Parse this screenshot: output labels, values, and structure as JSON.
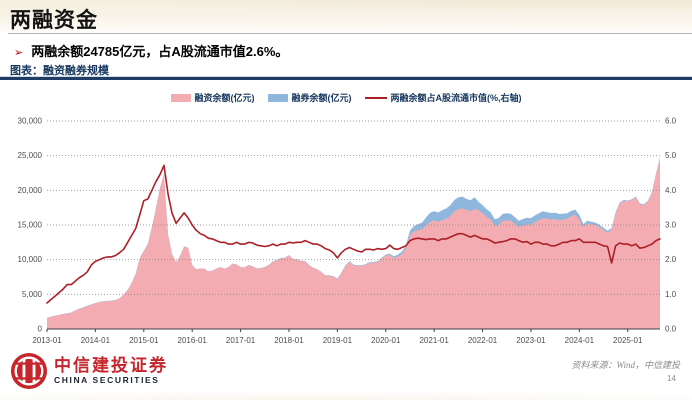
{
  "slide": {
    "title": "两融资金",
    "bullet": {
      "marker": "➢",
      "text": "两融余额24785亿元，占A股流通市值2.6%。"
    },
    "figure_caption": "图表：融资融券规模",
    "source": "资料来源：Wind，中信建投",
    "page_number": "14",
    "logo": {
      "cn": "中信建投证券",
      "en": "CHINA SECURITIES"
    }
  },
  "colors": {
    "financing_fill": "#F3ADB2",
    "securities_fill": "#8FB7DE",
    "ratio_line": "#AC1F26",
    "accent_red": "#C00000",
    "navy": "#17375E",
    "grid": "#7F7F7F",
    "axis_text": "#4D4D4D"
  },
  "chart_data": {
    "type": "area+line",
    "title": "融资融券规模",
    "legend": [
      "融资余额(亿元)",
      "融券余额(亿元)",
      "两融余额占A股流通市值(%,右轴)"
    ],
    "x_interval": "month",
    "x_start": "2013-01",
    "x_end": "2025-09",
    "x_tick_labels": [
      "2013-01",
      "2014-01",
      "2015-01",
      "2016-01",
      "2017-01",
      "2018-01",
      "2019-01",
      "2020-01",
      "2021-01",
      "2022-01",
      "2023-01",
      "2024-01",
      "2025-01"
    ],
    "x_tick_month_indexes": [
      0,
      12,
      24,
      36,
      48,
      60,
      72,
      84,
      96,
      108,
      120,
      132,
      144
    ],
    "y_left": {
      "min": 0,
      "max": 30000,
      "step": 5000,
      "tick_labels": [
        "0",
        "5,000",
        "10,000",
        "15,000",
        "20,000",
        "25,000",
        "30,000"
      ]
    },
    "y_right": {
      "min": 0,
      "max": 6,
      "step": 1,
      "tick_labels": [
        "0.0",
        "1.0",
        "2.0",
        "3.0",
        "4.0",
        "5.0",
        "6.0"
      ]
    },
    "grid": "dotted-horizontal",
    "legend_position": "top-center",
    "series": [
      {
        "name": "融资余额(亿元)",
        "axis": "left",
        "render": "area",
        "values": [
          1600,
          1750,
          1900,
          2000,
          2150,
          2250,
          2350,
          2650,
          2900,
          3100,
          3300,
          3500,
          3700,
          3850,
          3950,
          4000,
          4050,
          4150,
          4400,
          4900,
          5600,
          6600,
          7900,
          10200,
          11200,
          12200,
          14600,
          17300,
          20200,
          22300,
          13600,
          10800,
          9600,
          10500,
          11900,
          11700,
          9200,
          8600,
          8700,
          8700,
          8300,
          8400,
          8700,
          8900,
          8700,
          8900,
          9400,
          9300,
          8900,
          8850,
          9200,
          9000,
          8700,
          8750,
          8900,
          9200,
          9700,
          9900,
          10200,
          10250,
          10600,
          10050,
          10000,
          9800,
          9750,
          9200,
          8800,
          8600,
          8200,
          7700,
          7700,
          7550,
          7200,
          8050,
          9100,
          9650,
          9200,
          9100,
          9100,
          9250,
          9500,
          9550,
          9650,
          10150,
          10600,
          10700,
          10250,
          10450,
          10800,
          11600,
          13600,
          14100,
          14250,
          14400,
          15000,
          15400,
          15700,
          15450,
          15700,
          15900,
          16300,
          17000,
          17300,
          17400,
          17200,
          17000,
          17300,
          17150,
          16700,
          16200,
          15800,
          14900,
          15000,
          15600,
          15650,
          15600,
          15200,
          14700,
          14900,
          15100,
          15050,
          15400,
          15700,
          16000,
          15900,
          15800,
          15850,
          15700,
          15800,
          15900,
          16300,
          16500,
          15800,
          14700,
          15200,
          15100,
          15000,
          14700,
          14300,
          13900,
          14300,
          16700,
          18100,
          18500,
          18400,
          18600,
          19000,
          18000,
          17900,
          18400,
          19600,
          22300,
          24650
        ]
      },
      {
        "name": "融券余额(亿元)",
        "axis": "left",
        "render": "area-stacked",
        "values": [
          25,
          28,
          30,
          30,
          32,
          30,
          32,
          35,
          38,
          40,
          42,
          45,
          50,
          55,
          55,
          50,
          45,
          40,
          45,
          50,
          55,
          60,
          70,
          80,
          80,
          75,
          85,
          90,
          95,
          90,
          40,
          25,
          22,
          25,
          28,
          30,
          28,
          26,
          28,
          30,
          28,
          28,
          30,
          32,
          33,
          35,
          38,
          40,
          38,
          38,
          40,
          42,
          42,
          44,
          46,
          48,
          50,
          52,
          55,
          55,
          56,
          55,
          54,
          52,
          50,
          48,
          46,
          45,
          44,
          44,
          45,
          80,
          80,
          85,
          90,
          95,
          95,
          95,
          100,
          110,
          115,
          120,
          130,
          140,
          150,
          180,
          220,
          280,
          350,
          450,
          600,
          750,
          850,
          950,
          1100,
          1370,
          1300,
          1350,
          1450,
          1500,
          1550,
          1600,
          1700,
          1700,
          1600,
          1550,
          1700,
          1200,
          1150,
          1100,
          1050,
          950,
          1000,
          1000,
          1050,
          1000,
          950,
          900,
          960,
          960,
          950,
          980,
          1000,
          980,
          950,
          930,
          920,
          900,
          850,
          800,
          750,
          716,
          650,
          430,
          400,
          380,
          350,
          320,
          300,
          280,
          250,
          150,
          130,
          120,
          115,
          110,
          105,
          100,
          95,
          100,
          110,
          120,
          135
        ]
      },
      {
        "name": "两融余额占A股流通市值(%,右轴)",
        "axis": "right",
        "render": "line",
        "values": [
          0.75,
          0.85,
          0.95,
          1.05,
          1.15,
          1.28,
          1.28,
          1.38,
          1.48,
          1.55,
          1.65,
          1.85,
          1.95,
          2.0,
          2.05,
          2.08,
          2.08,
          2.12,
          2.2,
          2.3,
          2.5,
          2.7,
          2.9,
          3.3,
          3.7,
          3.75,
          4.0,
          4.25,
          4.45,
          4.72,
          3.9,
          3.35,
          3.05,
          3.2,
          3.35,
          3.2,
          3.0,
          2.85,
          2.75,
          2.7,
          2.62,
          2.6,
          2.55,
          2.5,
          2.5,
          2.45,
          2.45,
          2.5,
          2.45,
          2.45,
          2.5,
          2.48,
          2.42,
          2.4,
          2.38,
          2.4,
          2.45,
          2.4,
          2.45,
          2.45,
          2.5,
          2.48,
          2.5,
          2.5,
          2.55,
          2.5,
          2.45,
          2.45,
          2.4,
          2.32,
          2.28,
          2.2,
          2.05,
          2.2,
          2.3,
          2.35,
          2.3,
          2.25,
          2.22,
          2.3,
          2.3,
          2.28,
          2.32,
          2.3,
          2.32,
          2.42,
          2.32,
          2.3,
          2.35,
          2.4,
          2.55,
          2.6,
          2.62,
          2.6,
          2.58,
          2.6,
          2.6,
          2.55,
          2.6,
          2.6,
          2.65,
          2.7,
          2.75,
          2.75,
          2.7,
          2.65,
          2.7,
          2.65,
          2.6,
          2.6,
          2.55,
          2.48,
          2.5,
          2.52,
          2.55,
          2.6,
          2.6,
          2.55,
          2.5,
          2.52,
          2.45,
          2.5,
          2.5,
          2.45,
          2.45,
          2.4,
          2.4,
          2.45,
          2.5,
          2.5,
          2.55,
          2.55,
          2.6,
          2.5,
          2.5,
          2.5,
          2.5,
          2.45,
          2.4,
          2.38,
          1.9,
          2.4,
          2.48,
          2.45,
          2.45,
          2.4,
          2.45,
          2.33,
          2.35,
          2.4,
          2.45,
          2.55,
          2.6
        ]
      }
    ]
  }
}
